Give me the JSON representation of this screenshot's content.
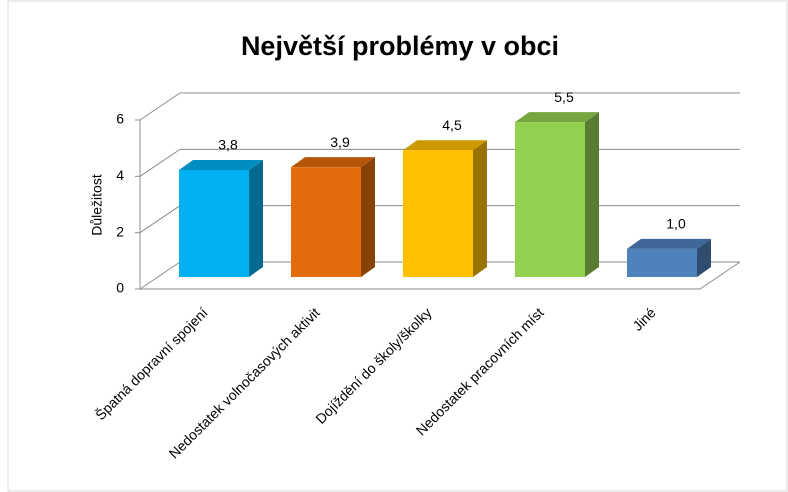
{
  "chart_data": {
    "type": "bar3d",
    "title": "Největší problémy v obci",
    "y_label": "Důležitost",
    "categories": [
      "Špatná dopravní spojení",
      "Nedostatek volnočasových aktivit",
      "Dojíždění do školy/školky",
      "Nedostatek pracovních míst",
      "Jiné"
    ],
    "values": [
      3.8,
      3.9,
      4.5,
      5.5,
      1.0
    ],
    "value_labels": [
      "3,8",
      "3,9",
      "4,5",
      "5,5",
      "1,0"
    ],
    "colors": [
      "#00b0f0",
      "#e36c0a",
      "#ffc000",
      "#92d050",
      "#4f81bd"
    ],
    "ylim": [
      0,
      6
    ],
    "yticks": [
      0,
      2,
      4,
      6
    ],
    "grid": true
  }
}
